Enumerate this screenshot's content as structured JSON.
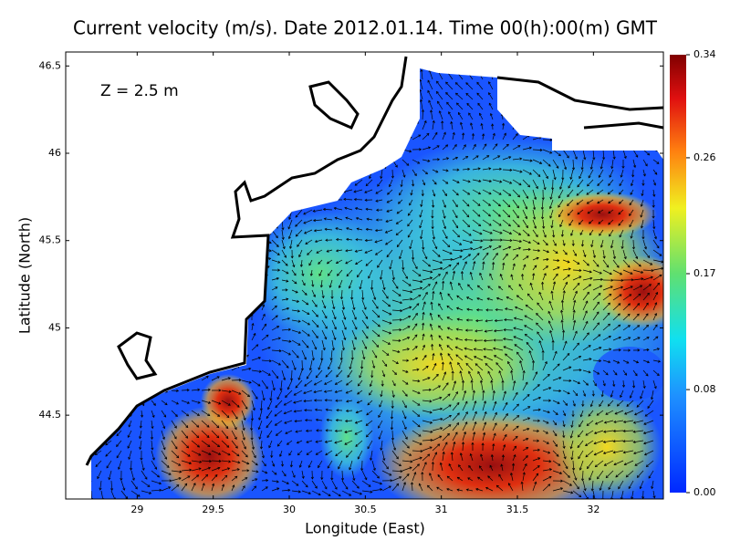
{
  "chart_data": {
    "type": "vector_field",
    "title": "Current velocity (m/s). Date 2012.01.14. Time 00(h):00(m) GMT",
    "annotation": "Z = 2.5 m",
    "x_label": "Longitude (East)",
    "y_label": "Latitude (North)",
    "xlim": [
      28.53,
      32.46
    ],
    "ylim": [
      44.02,
      46.58
    ],
    "xticks": [
      29,
      29.5,
      30,
      30.5,
      31,
      31.5,
      32
    ],
    "yticks": [
      44.5,
      45,
      45.5,
      46,
      46.5
    ],
    "clim": [
      0,
      0.34
    ],
    "cticks": [
      {
        "value": 0,
        "label": "0.00"
      },
      0.08,
      0.17,
      0.26,
      0.34
    ]
  }
}
